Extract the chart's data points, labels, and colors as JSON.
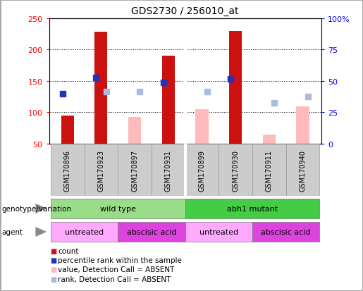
{
  "title": "GDS2730 / 256010_at",
  "samples": [
    "GSM170896",
    "GSM170923",
    "GSM170897",
    "GSM170931",
    "GSM170899",
    "GSM170930",
    "GSM170911",
    "GSM170940"
  ],
  "count_values": [
    95,
    228,
    null,
    190,
    null,
    230,
    null,
    null
  ],
  "count_absent_values": [
    null,
    null,
    93,
    null,
    105,
    null,
    65,
    110
  ],
  "percentile_rank": [
    130,
    155,
    null,
    148,
    null,
    153,
    null,
    null
  ],
  "rank_absent": [
    null,
    133,
    133,
    null,
    133,
    null,
    115,
    125
  ],
  "ylim_left": [
    50,
    250
  ],
  "ylim_right": [
    0,
    100
  ],
  "yticks_left": [
    50,
    100,
    150,
    200,
    250
  ],
  "yticks_right": [
    0,
    25,
    50,
    75,
    100
  ],
  "ytick_labels_left": [
    "50",
    "100",
    "150",
    "200",
    "250"
  ],
  "ytick_labels_right": [
    "0",
    "25",
    "50",
    "75",
    "100%"
  ],
  "bar_bottom": 50,
  "count_color": "#cc1111",
  "count_absent_color": "#ffbbbb",
  "rank_color": "#2233bb",
  "rank_absent_color": "#aabbdd",
  "genotype_wt_color": "#99dd88",
  "genotype_mut_color": "#44cc44",
  "agent_untreated_color": "#ffaaff",
  "agent_abscisic_color": "#dd44dd",
  "sample_box_color": "#cccccc",
  "legend_items": [
    {
      "color": "#cc1111",
      "label": "count"
    },
    {
      "color": "#2233bb",
      "label": "percentile rank within the sample"
    },
    {
      "color": "#ffbbbb",
      "label": "value, Detection Call = ABSENT"
    },
    {
      "color": "#aabbdd",
      "label": "rank, Detection Call = ABSENT"
    }
  ]
}
